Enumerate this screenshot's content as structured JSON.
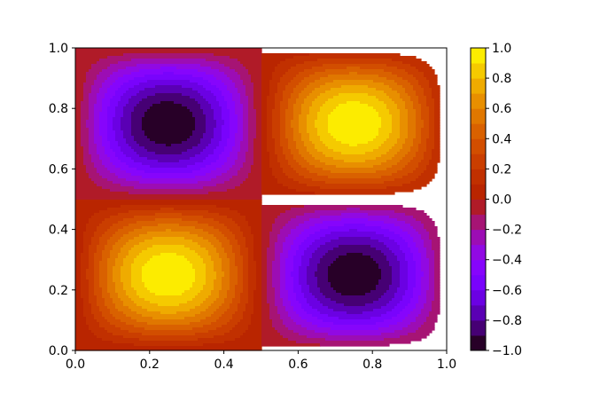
{
  "chart_data": {
    "type": "heatmap",
    "subtype": "filled-contour",
    "title": "",
    "xlabel": "",
    "ylabel": "",
    "function": "sin(2πx)·sin(2πy) sampled on the unit square",
    "xlim": [
      0.0,
      1.0
    ],
    "ylim": [
      0.0,
      1.0
    ],
    "x_ticks": [
      0.0,
      0.2,
      0.4,
      0.6,
      0.8,
      1.0
    ],
    "x_tick_labels": [
      "0.0",
      "0.2",
      "0.4",
      "0.6",
      "0.8",
      "1.0"
    ],
    "y_ticks": [
      0.0,
      0.2,
      0.4,
      0.6,
      0.8,
      1.0
    ],
    "y_tick_labels": [
      "0.0",
      "0.2",
      "0.4",
      "0.6",
      "0.8",
      "1.0"
    ],
    "grid": false,
    "colormap": "gnuplot",
    "colorbar": {
      "placement": "right",
      "vmin": -1.0,
      "vmax": 1.0,
      "levels": [
        -1.0,
        -0.9,
        -0.8,
        -0.7,
        -0.6,
        -0.5,
        -0.4,
        -0.3,
        -0.2,
        -0.1,
        0.0,
        0.1,
        0.2,
        0.3,
        0.4,
        0.5,
        0.6,
        0.7,
        0.8,
        0.9,
        1.0
      ],
      "ticks": [
        -1.0,
        -0.8,
        -0.6,
        -0.4,
        -0.2,
        0.0,
        0.2,
        0.4,
        0.6,
        0.8,
        1.0
      ],
      "tick_labels": [
        "−1.0",
        "−0.8",
        "−0.6",
        "−0.4",
        "−0.2",
        "0.0",
        "0.2",
        "0.4",
        "0.6",
        "0.8",
        "1.0"
      ]
    },
    "extrema": [
      {
        "x": 0.25,
        "y": 0.25,
        "value": 1.0,
        "kind": "max"
      },
      {
        "x": 0.75,
        "y": 0.75,
        "value": 1.0,
        "kind": "max"
      },
      {
        "x": 0.25,
        "y": 0.75,
        "value": -1.0,
        "kind": "min"
      },
      {
        "x": 0.75,
        "y": 0.25,
        "value": -1.0,
        "kind": "min"
      }
    ]
  }
}
